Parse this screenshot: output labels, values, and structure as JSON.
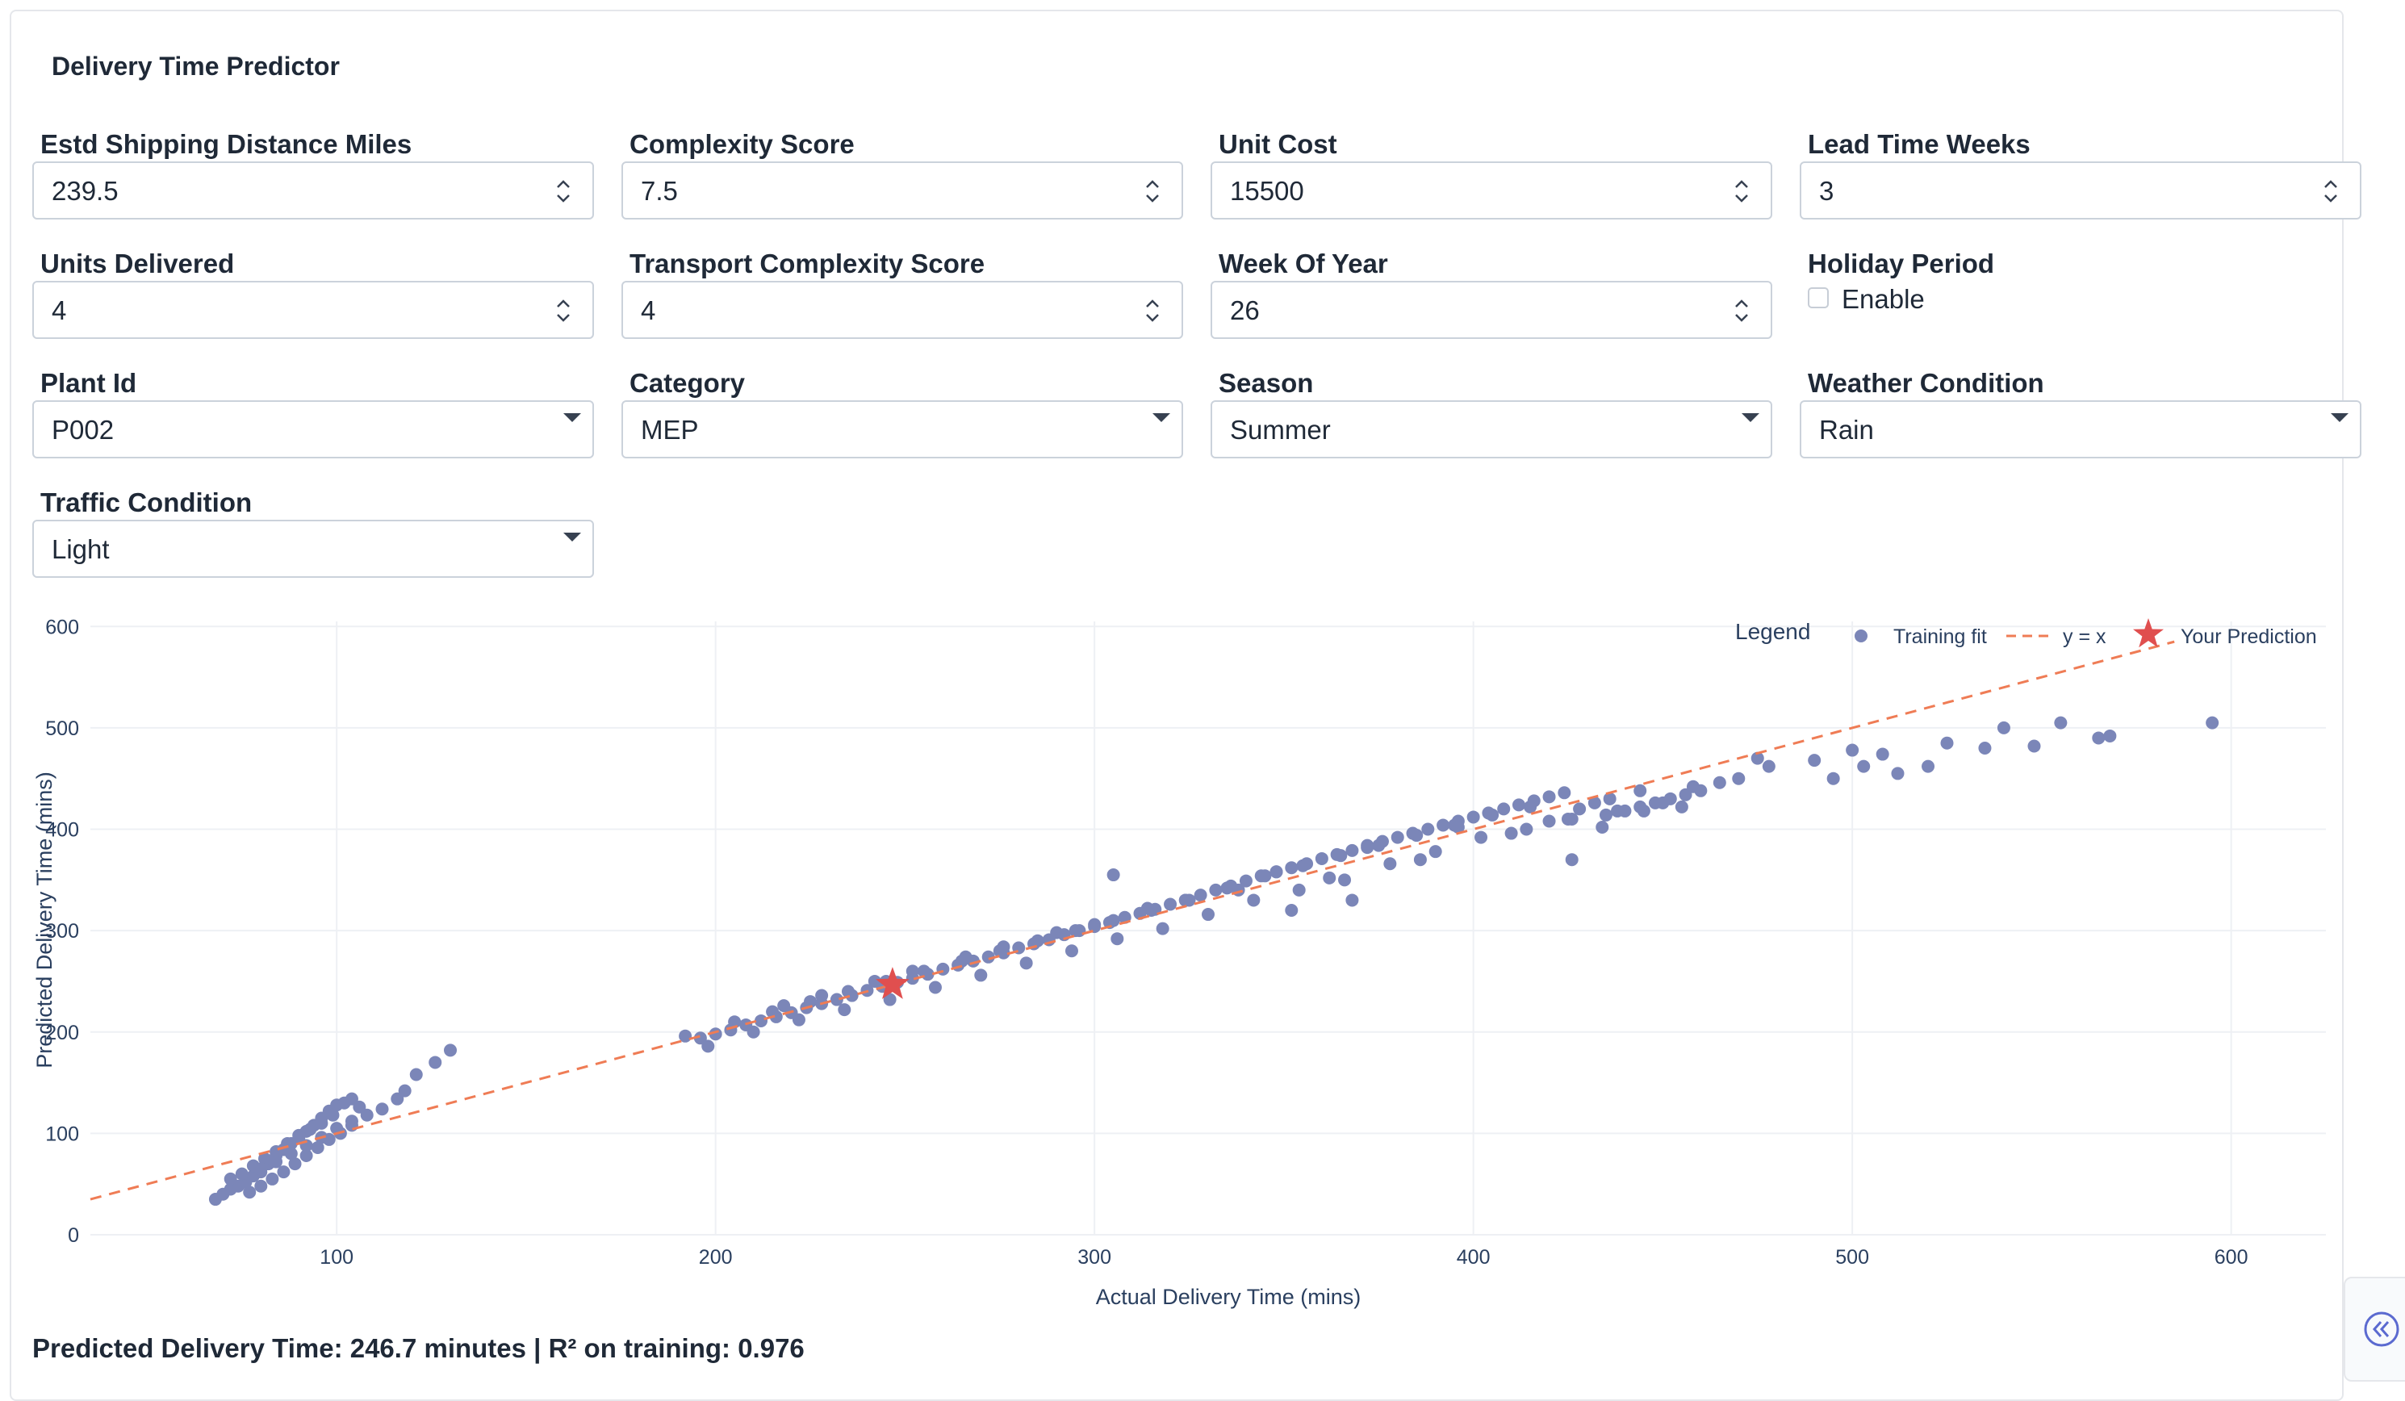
{
  "app": {
    "title": "Delivery Time Predictor"
  },
  "fields": {
    "shipping_distance": {
      "label": "Estd Shipping Distance Miles",
      "value": "239.5"
    },
    "complexity_score": {
      "label": "Complexity Score",
      "value": "7.5"
    },
    "unit_cost": {
      "label": "Unit Cost",
      "value": "15500"
    },
    "lead_time_weeks": {
      "label": "Lead Time Weeks",
      "value": "3"
    },
    "units_delivered": {
      "label": "Units Delivered",
      "value": "4"
    },
    "transport_complexity": {
      "label": "Transport Complexity Score",
      "value": "4"
    },
    "week_of_year": {
      "label": "Week Of Year",
      "value": "26"
    },
    "holiday_period": {
      "label": "Holiday Period",
      "option": "Enable",
      "checked": false
    },
    "plant_id": {
      "label": "Plant Id",
      "value": "P002"
    },
    "category": {
      "label": "Category",
      "value": "MEP"
    },
    "season": {
      "label": "Season",
      "value": "Summer"
    },
    "weather_condition": {
      "label": "Weather Condition",
      "value": "Rain"
    },
    "traffic_condition": {
      "label": "Traffic Condition",
      "value": "Light"
    }
  },
  "chart_data": {
    "type": "scatter",
    "xlabel": "Actual Delivery Time (mins)",
    "ylabel": "Predicted Delivery Time (mins)",
    "xlim": [
      35,
      625
    ],
    "ylim": [
      0,
      605
    ],
    "xticks": [
      100,
      200,
      300,
      400,
      500,
      600
    ],
    "yticks": [
      0,
      100,
      200,
      300,
      400,
      500,
      600
    ],
    "grid": true,
    "legend": {
      "title": "Legend",
      "position": "top-right"
    },
    "series": [
      {
        "name": "Training fit",
        "type": "scatter",
        "color": "#7b86b8",
        "x": [
          68,
          70,
          72,
          74,
          76,
          78,
          80,
          82,
          84,
          86,
          88,
          90,
          92,
          94,
          96,
          98,
          100,
          102,
          104,
          106,
          72,
          75,
          78,
          81,
          84,
          87,
          90,
          93,
          96,
          99,
          77,
          80,
          83,
          86,
          89,
          92,
          95,
          98,
          101,
          104,
          80,
          84,
          88,
          92,
          96,
          100,
          104,
          108,
          112,
          116,
          118,
          121,
          126,
          130,
          192,
          196,
          200,
          204,
          208,
          212,
          216,
          220,
          224,
          228,
          232,
          236,
          240,
          244,
          248,
          252,
          256,
          260,
          264,
          268,
          272,
          276,
          280,
          284,
          288,
          292,
          296,
          300,
          304,
          308,
          312,
          316,
          320,
          324,
          328,
          332,
          336,
          340,
          344,
          348,
          352,
          356,
          360,
          364,
          368,
          372,
          376,
          380,
          384,
          388,
          392,
          396,
          400,
          404,
          408,
          412,
          416,
          420,
          424,
          428,
          432,
          436,
          440,
          444,
          448,
          452,
          456,
          460,
          198,
          210,
          222,
          234,
          246,
          258,
          270,
          282,
          294,
          306,
          318,
          330,
          342,
          354,
          366,
          378,
          390,
          402,
          414,
          426,
          438,
          450,
          205,
          215,
          225,
          235,
          245,
          255,
          265,
          275,
          285,
          295,
          305,
          315,
          325,
          335,
          345,
          355,
          365,
          375,
          385,
          395,
          405,
          415,
          425,
          435,
          445,
          455,
          218,
          242,
          266,
          290,
          314,
          338,
          362,
          386,
          410,
          434,
          458,
          228,
          252,
          276,
          300,
          324,
          348,
          372,
          396,
          420,
          444,
          465,
          470,
          475,
          478,
          490,
          495,
          500,
          503,
          508,
          512,
          520,
          525,
          535,
          540,
          548,
          555,
          565,
          568,
          595,
          305,
          426,
          352,
          368
        ],
        "y": [
          35,
          40,
          45,
          48,
          52,
          58,
          62,
          70,
          78,
          84,
          90,
          95,
          102,
          108,
          115,
          122,
          128,
          130,
          134,
          126,
          55,
          60,
          68,
          75,
          82,
          90,
          98,
          104,
          110,
          118,
          42,
          48,
          55,
          62,
          70,
          78,
          86,
          94,
          100,
          108,
          65,
          72,
          80,
          88,
          96,
          105,
          112,
          118,
          124,
          134,
          142,
          158,
          170,
          182,
          196,
          194,
          198,
          202,
          207,
          211,
          215,
          219,
          224,
          228,
          232,
          236,
          241,
          245,
          249,
          253,
          257,
          262,
          266,
          270,
          274,
          278,
          283,
          287,
          291,
          296,
          300,
          304,
          308,
          313,
          317,
          321,
          326,
          330,
          335,
          340,
          344,
          349,
          354,
          358,
          362,
          366,
          371,
          375,
          379,
          384,
          388,
          392,
          396,
          400,
          404,
          408,
          412,
          416,
          420,
          424,
          428,
          432,
          436,
          420,
          426,
          430,
          418,
          422,
          426,
          430,
          434,
          438,
          186,
          200,
          212,
          222,
          232,
          244,
          256,
          268,
          280,
          292,
          302,
          316,
          330,
          340,
          350,
          366,
          378,
          392,
          400,
          410,
          418,
          426,
          210,
          220,
          230,
          240,
          250,
          260,
          270,
          280,
          290,
          300,
          310,
          320,
          330,
          342,
          354,
          364,
          374,
          384,
          394,
          404,
          414,
          422,
          410,
          414,
          418,
          422,
          226,
          250,
          274,
          298,
          322,
          340,
          352,
          370,
          396,
          402,
          442,
          236,
          260,
          284,
          306,
          330,
          358,
          382,
          402,
          408,
          438,
          446,
          450,
          470,
          462,
          468,
          450,
          478,
          462,
          474,
          455,
          462,
          485,
          480,
          500,
          482,
          505,
          490,
          492,
          505,
          355,
          370,
          320,
          330
        ]
      },
      {
        "name": "y = x",
        "type": "line",
        "color": "#ef7c55",
        "x": [
          35,
          585
        ],
        "y": [
          35,
          585
        ]
      },
      {
        "name": "Your Prediction",
        "type": "star",
        "color": "#e04f4f",
        "x": [
          246.7
        ],
        "y": [
          246.7
        ]
      }
    ]
  },
  "result": {
    "text": "Predicted Delivery Time: 246.7 minutes | R² on training: 0.976"
  }
}
